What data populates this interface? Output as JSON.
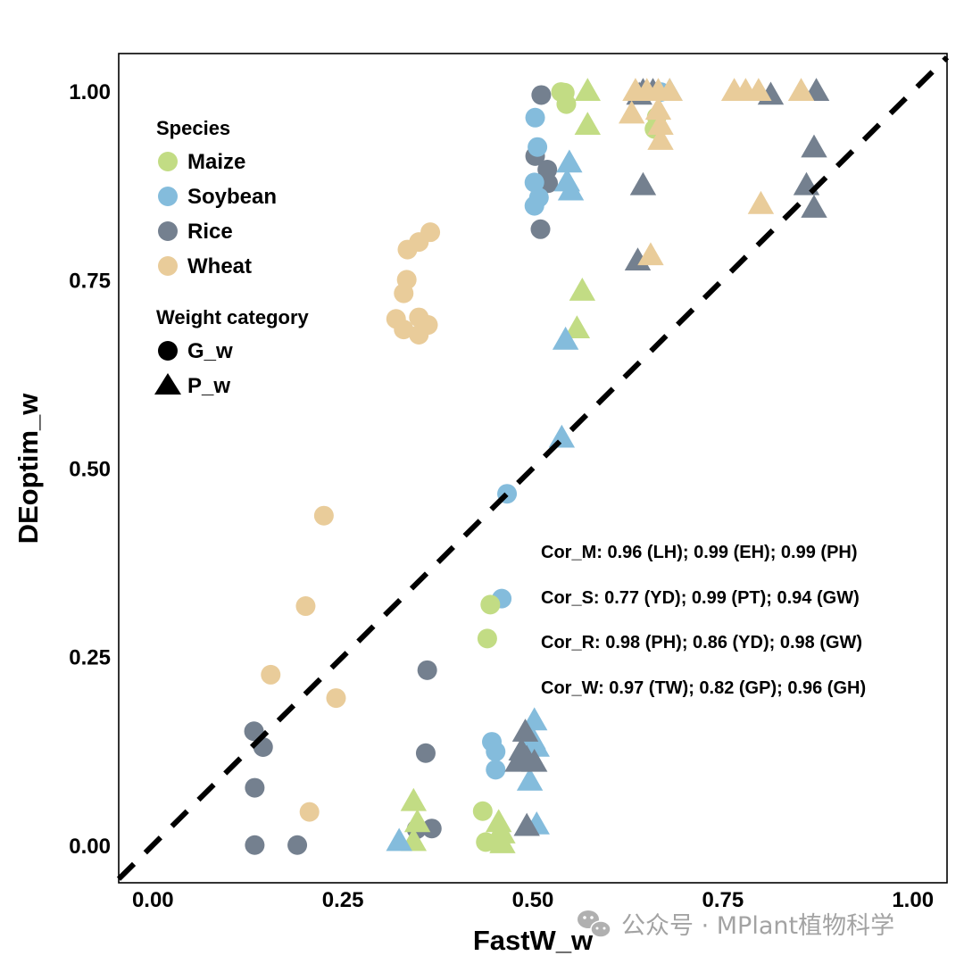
{
  "chart_data": {
    "type": "scatter",
    "title": "",
    "xlabel": "FastW_w",
    "ylabel": "DEoptim_w",
    "xlim": [
      -0.045,
      1.045
    ],
    "ylim": [
      -0.05,
      1.05
    ],
    "x_ticks": [
      0.0,
      0.25,
      0.5,
      0.75,
      1.0
    ],
    "x_tick_labels": [
      "0.00",
      "0.25",
      "0.50",
      "0.75",
      "1.00"
    ],
    "y_ticks": [
      0.0,
      0.25,
      0.5,
      0.75,
      1.0
    ],
    "y_tick_labels": [
      "0.00",
      "0.25",
      "0.50",
      "0.75",
      "1.00"
    ],
    "grid": false,
    "reference_line": {
      "type": "identity",
      "style": "dashed",
      "color": "#000000"
    },
    "legend": {
      "placement": "top-left",
      "species_title": "Species",
      "species": [
        {
          "name": "Maize",
          "color": "#c2dc84"
        },
        {
          "name": "Soybean",
          "color": "#84bcdc"
        },
        {
          "name": "Rice",
          "color": "#74808f"
        },
        {
          "name": "Wheat",
          "color": "#e9cc9a"
        }
      ],
      "weight_title": "Weight category",
      "weights": [
        {
          "name": "G_w",
          "shape": "circle"
        },
        {
          "name": "P_w",
          "shape": "triangle"
        }
      ]
    },
    "annotations": [
      "Cor_M: 0.96 (LH); 0.99 (EH); 0.99 (PH)",
      "Cor_S: 0.77 (YD); 0.99 (PT); 0.94 (GW)",
      "Cor_R: 0.98 (PH); 0.86 (YD); 0.98 (GW)",
      "Cor_W: 0.97 (TW); 0.82 (GP); 0.96 (GH)"
    ],
    "series": [
      {
        "name": "Wheat",
        "shape": "circle",
        "color": "#e9cc9a",
        "points": [
          [
            0.335,
            0.79
          ],
          [
            0.35,
            0.8
          ],
          [
            0.365,
            0.813
          ],
          [
            0.334,
            0.75
          ],
          [
            0.33,
            0.732
          ],
          [
            0.32,
            0.698
          ],
          [
            0.33,
            0.684
          ],
          [
            0.35,
            0.7
          ],
          [
            0.362,
            0.69
          ],
          [
            0.35,
            0.677
          ],
          [
            0.225,
            0.437
          ],
          [
            0.201,
            0.317
          ],
          [
            0.155,
            0.226
          ],
          [
            0.241,
            0.195
          ],
          [
            0.206,
            0.044
          ]
        ]
      },
      {
        "name": "Rice",
        "shape": "circle",
        "color": "#74808f",
        "points": [
          [
            0.511,
            0.995
          ],
          [
            0.503,
            0.914
          ],
          [
            0.519,
            0.896
          ],
          [
            0.52,
            0.878
          ],
          [
            0.51,
            0.817
          ],
          [
            0.361,
            0.232
          ],
          [
            0.359,
            0.122
          ],
          [
            0.133,
            0.151
          ],
          [
            0.145,
            0.13
          ],
          [
            0.134,
            0.076
          ],
          [
            0.134,
            0.0
          ],
          [
            0.19,
            0.0
          ],
          [
            0.347,
            0.021
          ],
          [
            0.367,
            0.022
          ]
        ]
      },
      {
        "name": "Soybean",
        "shape": "circle",
        "color": "#84bcdc",
        "points": [
          [
            0.503,
            0.965
          ],
          [
            0.506,
            0.926
          ],
          [
            0.502,
            0.879
          ],
          [
            0.508,
            0.859
          ],
          [
            0.502,
            0.848
          ],
          [
            0.466,
            0.466
          ],
          [
            0.459,
            0.327
          ],
          [
            0.446,
            0.137
          ],
          [
            0.451,
            0.124
          ],
          [
            0.451,
            0.1
          ],
          [
            0.668,
            0.999
          ]
        ]
      },
      {
        "name": "Maize",
        "shape": "circle",
        "color": "#c2dc84",
        "points": [
          [
            0.542,
            0.998
          ],
          [
            0.544,
            0.983
          ],
          [
            0.537,
            0.999
          ],
          [
            0.444,
            0.319
          ],
          [
            0.44,
            0.274
          ],
          [
            0.434,
            0.045
          ],
          [
            0.438,
            0.004
          ],
          [
            0.663,
            0.966
          ],
          [
            0.66,
            0.95
          ]
        ]
      },
      {
        "name": "Maize",
        "shape": "triangle",
        "color": "#c2dc84",
        "points": [
          [
            0.572,
            1.0
          ],
          [
            0.572,
            0.955
          ],
          [
            0.565,
            0.735
          ],
          [
            0.558,
            0.685
          ],
          [
            0.343,
            0.058
          ],
          [
            0.348,
            0.03
          ],
          [
            0.343,
            0.005
          ],
          [
            0.455,
            0.03
          ],
          [
            0.46,
            0.015
          ],
          [
            0.45,
            0.005
          ],
          [
            0.46,
            0.002
          ]
        ]
      },
      {
        "name": "Soybean",
        "shape": "triangle",
        "color": "#84bcdc",
        "points": [
          [
            0.548,
            0.905
          ],
          [
            0.545,
            0.88
          ],
          [
            0.55,
            0.868
          ],
          [
            0.543,
            0.67
          ],
          [
            0.538,
            0.54
          ],
          [
            0.324,
            0.005
          ],
          [
            0.502,
            0.165
          ],
          [
            0.5,
            0.14
          ],
          [
            0.505,
            0.13
          ],
          [
            0.496,
            0.085
          ],
          [
            0.505,
            0.027
          ],
          [
            0.68,
            1.0
          ]
        ]
      },
      {
        "name": "Rice",
        "shape": "triangle",
        "color": "#74808f",
        "points": [
          [
            0.645,
            1.0
          ],
          [
            0.658,
            1.0
          ],
          [
            0.64,
            0.995
          ],
          [
            0.813,
            0.995
          ],
          [
            0.873,
            1.0
          ],
          [
            0.645,
            0.875
          ],
          [
            0.87,
            0.925
          ],
          [
            0.86,
            0.875
          ],
          [
            0.87,
            0.845
          ],
          [
            0.638,
            0.775
          ],
          [
            0.49,
            0.15
          ],
          [
            0.485,
            0.125
          ],
          [
            0.492,
            0.115
          ],
          [
            0.48,
            0.11
          ],
          [
            0.502,
            0.11
          ],
          [
            0.492,
            0.025
          ]
        ]
      },
      {
        "name": "Wheat",
        "shape": "triangle",
        "color": "#e9cc9a",
        "points": [
          [
            0.635,
            1.0
          ],
          [
            0.65,
            1.0
          ],
          [
            0.665,
            1.0
          ],
          [
            0.68,
            1.0
          ],
          [
            0.63,
            0.97
          ],
          [
            0.665,
            0.975
          ],
          [
            0.668,
            0.955
          ],
          [
            0.668,
            0.935
          ],
          [
            0.765,
            1.0
          ],
          [
            0.78,
            1.0
          ],
          [
            0.797,
            1.0
          ],
          [
            0.853,
            1.0
          ],
          [
            0.8,
            0.85
          ],
          [
            0.655,
            0.782
          ]
        ]
      }
    ]
  },
  "watermark": {
    "text": "公众号 · MPlant植物科学",
    "icon": "wechat-icon"
  }
}
